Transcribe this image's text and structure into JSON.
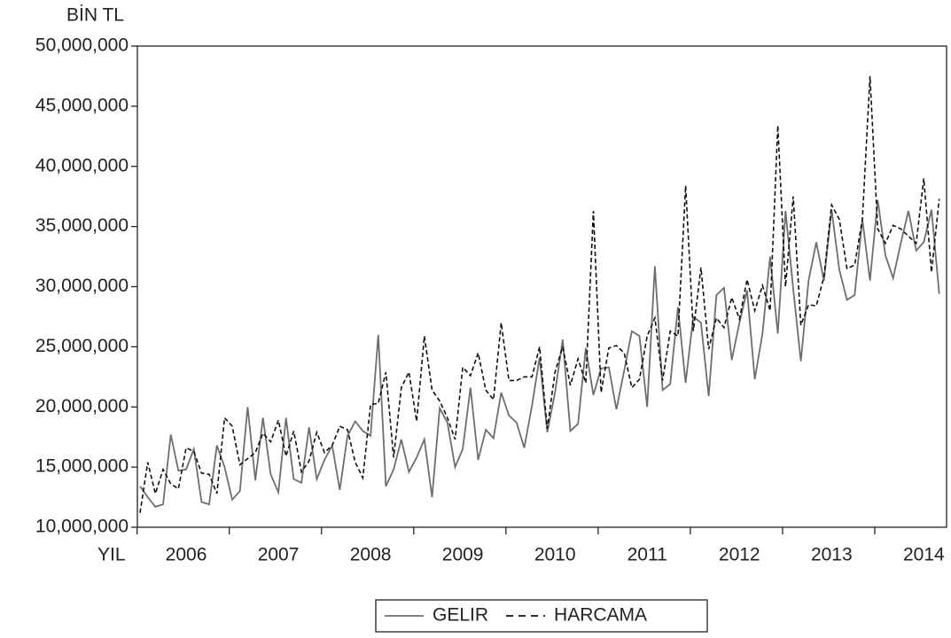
{
  "chart_data": {
    "type": "line",
    "y_label": "BİN TL",
    "x_label": "YIL",
    "categories": [
      null,
      null,
      null,
      null,
      null,
      null,
      "2006",
      null,
      null,
      null,
      null,
      null,
      null,
      null,
      null,
      null,
      null,
      null,
      "2007",
      null,
      null,
      null,
      null,
      null,
      null,
      null,
      null,
      null,
      null,
      null,
      "2008",
      null,
      null,
      null,
      null,
      null,
      null,
      null,
      null,
      null,
      null,
      null,
      "2009",
      null,
      null,
      null,
      null,
      null,
      null,
      null,
      null,
      null,
      null,
      null,
      "2010",
      null,
      null,
      null,
      null,
      null,
      null,
      null,
      null,
      null,
      null,
      null,
      "2011",
      null,
      null,
      null,
      null,
      null,
      null,
      null,
      null,
      null,
      null,
      null,
      "2012",
      null,
      null,
      null,
      null,
      null,
      null,
      null,
      null,
      null,
      null,
      null,
      "2013",
      null,
      null,
      null,
      null,
      null,
      null,
      null,
      null,
      null,
      null,
      null,
      "2014",
      null,
      null
    ],
    "series": [
      {
        "name": "GELIR",
        "color": "#6e6e6e",
        "dashed": false,
        "values": [
          13400000,
          12500000,
          11700000,
          11900000,
          17700000,
          14700000,
          14800000,
          16500000,
          12100000,
          11900000,
          16800000,
          15000000,
          12300000,
          13000000,
          20000000,
          13900000,
          19100000,
          14400000,
          12900000,
          19100000,
          14000000,
          13700000,
          18300000,
          14000000,
          15600000,
          16800000,
          13100000,
          17600000,
          18800000,
          18000000,
          17600000,
          26000000,
          13400000,
          14800000,
          17300000,
          14600000,
          15800000,
          17300000,
          12500000,
          19900000,
          18700000,
          15000000,
          16500000,
          21600000,
          15600000,
          18100000,
          17400000,
          21200000,
          19300000,
          18700000,
          16600000,
          20100000,
          24100000,
          17900000,
          21200000,
          25600000,
          18000000,
          18600000,
          24900000,
          21000000,
          23200000,
          23300000,
          19800000,
          23000000,
          26300000,
          25900000,
          20000000,
          31700000,
          21400000,
          21900000,
          28300000,
          22000000,
          27500000,
          27000000,
          20900000,
          29300000,
          29900000,
          23900000,
          27000000,
          29700000,
          22300000,
          26100000,
          32500000,
          26100000,
          36300000,
          29800000,
          23800000,
          30500000,
          33700000,
          30500000,
          36400000,
          31400000,
          28900000,
          29300000,
          35600000,
          30500000,
          37200000,
          32600000,
          30700000,
          33600000,
          36300000,
          33000000,
          33700000,
          36400000,
          29400000
        ]
      },
      {
        "name": "HARCAMA",
        "color": "#111111",
        "dashed": true,
        "values": [
          11200000,
          15400000,
          12800000,
          14800000,
          13600000,
          13200000,
          16600000,
          16300000,
          14500000,
          14400000,
          12800000,
          19100000,
          18400000,
          15200000,
          15700000,
          16200000,
          17800000,
          17100000,
          18900000,
          15900000,
          18000000,
          14600000,
          15500000,
          17900000,
          16200000,
          16800000,
          18400000,
          18100000,
          15400000,
          14100000,
          20200000,
          20300000,
          22900000,
          15800000,
          21600000,
          22900000,
          18800000,
          25900000,
          21400000,
          20500000,
          19100000,
          17300000,
          23300000,
          22600000,
          24500000,
          21400000,
          20600000,
          27000000,
          22200000,
          22200000,
          22500000,
          22500000,
          25000000,
          18200000,
          22900000,
          25000000,
          21800000,
          24000000,
          22000000,
          36300000,
          21200000,
          24900000,
          25100000,
          24500000,
          21600000,
          22300000,
          25900000,
          27400000,
          22200000,
          26300000,
          25900000,
          38400000,
          26300000,
          31600000,
          24800000,
          27400000,
          26600000,
          29100000,
          27300000,
          30600000,
          28000000,
          30100000,
          28000000,
          43400000,
          30000000,
          37500000,
          26800000,
          28500000,
          28400000,
          30800000,
          36800000,
          35600000,
          31500000,
          31800000,
          35600000,
          47500000,
          34800000,
          33600000,
          35100000,
          34800000,
          34200000,
          33600000,
          39000000,
          31200000,
          37300000
        ]
      }
    ],
    "ylim": [
      10000000,
      50000000
    ],
    "yticks": [
      {
        "value": 10000000,
        "label": "10,000,000"
      },
      {
        "value": 15000000,
        "label": "15,000,000"
      },
      {
        "value": 20000000,
        "label": "20,000,000"
      },
      {
        "value": 25000000,
        "label": "25,000,000"
      },
      {
        "value": 30000000,
        "label": "30,000,000"
      },
      {
        "value": 35000000,
        "label": "35,000,000"
      },
      {
        "value": 40000000,
        "label": "40,000,000"
      },
      {
        "value": 45000000,
        "label": "45,000,000"
      },
      {
        "value": 50000000,
        "label": "50,000,000"
      }
    ],
    "grid": false,
    "legend": "bottom"
  }
}
